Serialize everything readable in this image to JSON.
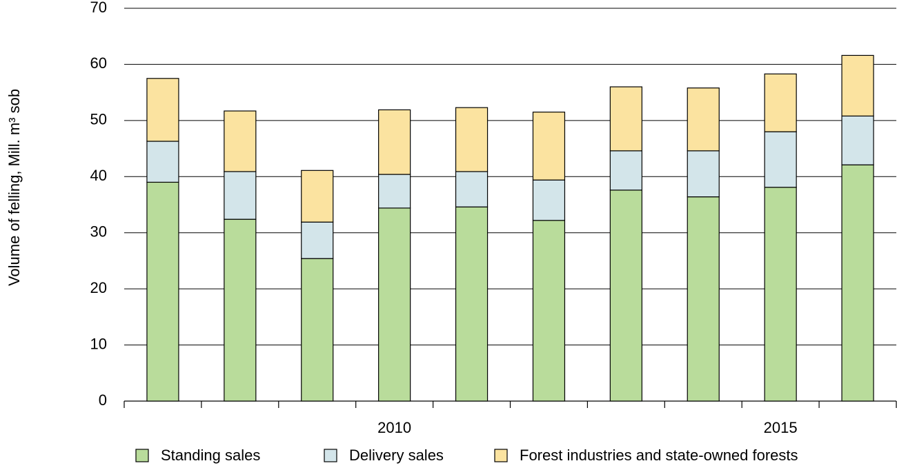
{
  "chart_data": {
    "type": "stacked_bar",
    "y_label": "Volume of felling, Mill. m³ sob",
    "categories": [
      null,
      null,
      null,
      "2010",
      null,
      null,
      null,
      null,
      "2015",
      null
    ],
    "series": [
      {
        "name": "Standing sales",
        "color": "#b9dc9b",
        "values": [
          39.0,
          32.4,
          25.4,
          34.4,
          34.6,
          32.2,
          37.6,
          36.4,
          38.1,
          42.1
        ]
      },
      {
        "name": "Delivery sales",
        "color": "#d3e5ea",
        "values": [
          7.3,
          8.5,
          6.5,
          6.0,
          6.3,
          7.2,
          7.0,
          8.2,
          9.9,
          8.7
        ]
      },
      {
        "name": "Forest industries and state-owned forests",
        "color": "#fbe3a0",
        "values": [
          11.2,
          10.8,
          9.2,
          11.5,
          11.4,
          12.1,
          11.4,
          11.2,
          10.3,
          10.8
        ]
      }
    ],
    "ylim": [
      0,
      70
    ],
    "yticks": [
      0,
      10,
      20,
      30,
      40,
      50,
      60,
      70
    ],
    "grid": true,
    "legend": "bottom"
  }
}
